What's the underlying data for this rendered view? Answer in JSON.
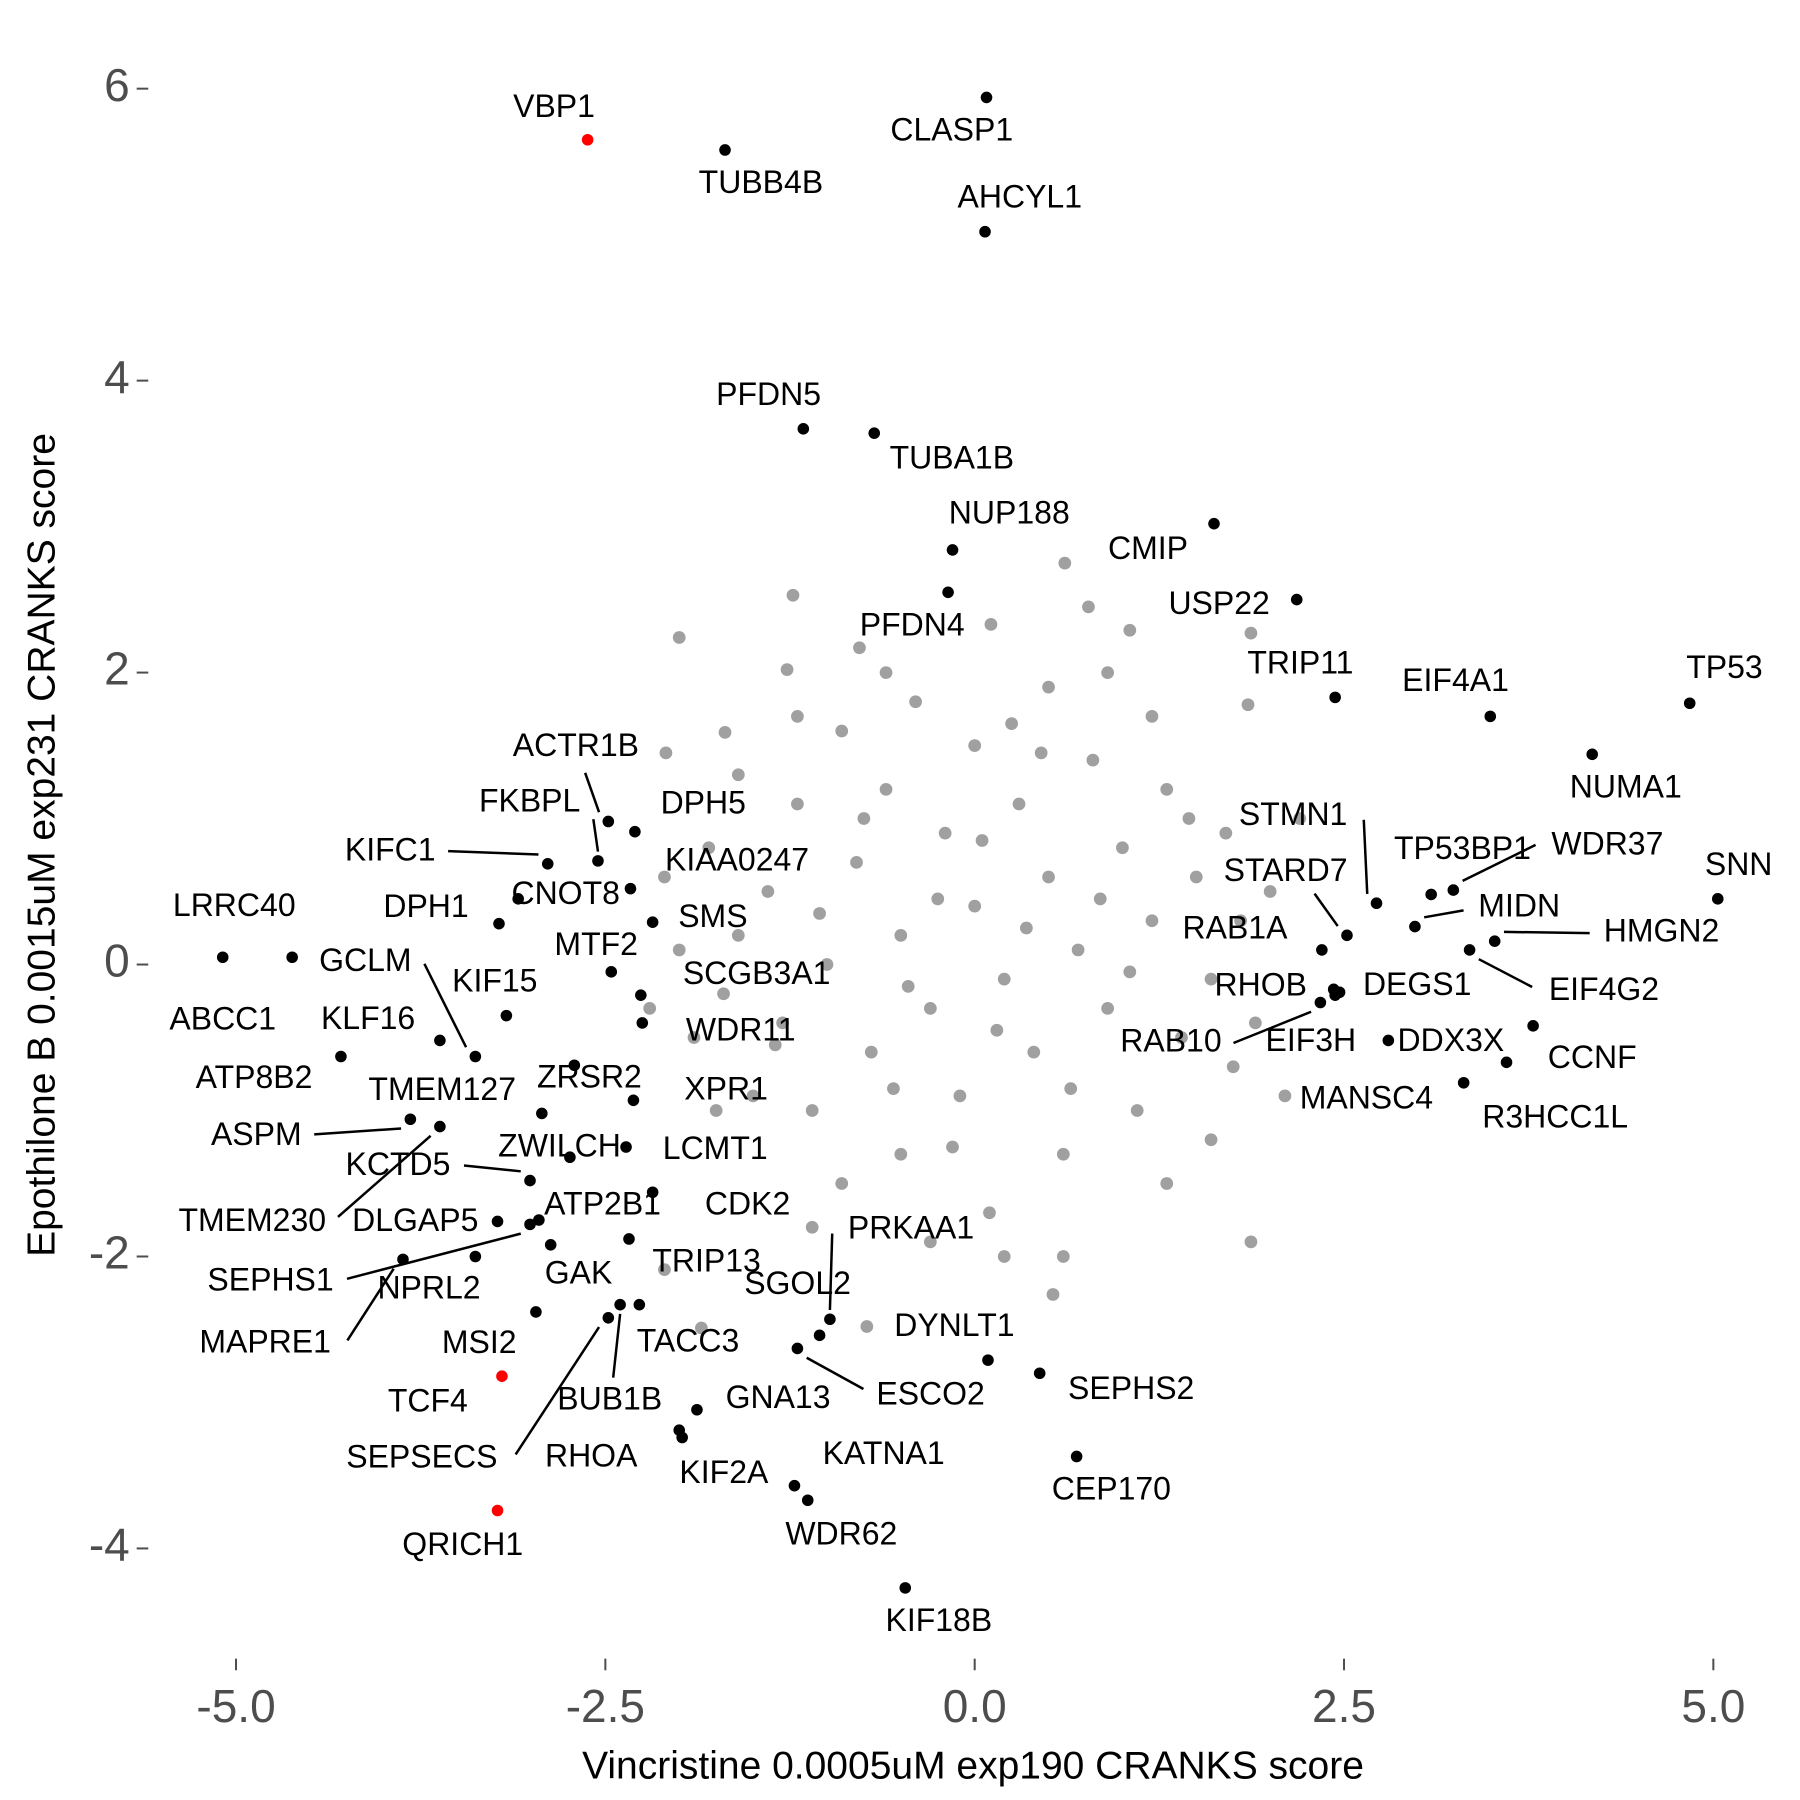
{
  "chart_data": {
    "type": "scatter",
    "xlabel": "Vincristine 0.0005uM exp190 CRANKS score",
    "ylabel": "Epothilone B 0.0015uM exp231 CRANKS score",
    "xlim": [
      -5.5,
      5.32
    ],
    "ylim": [
      -4.66,
      6.29
    ],
    "xticks": [
      {
        "value": -5,
        "label": "-5.0"
      },
      {
        "value": -2.5,
        "label": "-2.5"
      },
      {
        "value": 0,
        "label": "0.0"
      },
      {
        "value": 2.5,
        "label": "2.5"
      },
      {
        "value": 5,
        "label": "5.0"
      }
    ],
    "yticks": [
      -4,
      -2,
      0,
      2,
      4,
      6
    ],
    "series": [
      {
        "color": "#a0a0a0",
        "x": [
          -2.0,
          -1.23,
          0.61,
          0.77,
          0.11,
          1.05,
          1.87,
          1.85,
          1.87,
          0.53,
          -0.73,
          -1.85,
          -2.1,
          -2.09,
          -1.69,
          -1.27,
          -0.78,
          -1.4,
          -1.3,
          -1.2,
          -1.1,
          -1.0,
          -0.9,
          -0.9,
          -0.8,
          -0.7,
          -0.6,
          -0.5,
          -0.5,
          -0.4,
          -0.3,
          -0.2,
          -0.1,
          0.0,
          0.0,
          0.1,
          0.2,
          0.3,
          0.4,
          0.5,
          0.5,
          0.6,
          0.7,
          0.8,
          0.9,
          1.0,
          1.1,
          1.2,
          1.3,
          1.4,
          1.5,
          1.6,
          1.7,
          -1.5,
          -1.6,
          -1.7,
          1.8,
          1.9,
          2.0,
          -1.8,
          -1.9,
          -2.0,
          0.2,
          -0.3,
          0.6,
          -0.6,
          0.9,
          1.2,
          -1.2,
          1.3,
          -1.1,
          0.35,
          -0.25,
          0.15,
          -0.45,
          0.65,
          -0.75,
          1.05,
          -1.05,
          0.45,
          -0.15,
          0.85,
          -0.55,
          1.45,
          -1.35,
          0.05,
          0.25,
          1.6,
          -1.6,
          1.75,
          -1.75,
          2.1,
          -2.2,
          2.2,
          -2.1
        ],
        "y": [
          2.24,
          2.53,
          2.75,
          2.45,
          2.33,
          2.29,
          2.27,
          1.78,
          -1.9,
          -2.26,
          -2.48,
          -2.49,
          -2.09,
          1.45,
          1.59,
          2.02,
          2.17,
          0.5,
          -0.4,
          1.1,
          -1.0,
          0.0,
          1.6,
          -1.5,
          0.7,
          -0.6,
          1.2,
          0.2,
          -1.3,
          1.8,
          -0.3,
          0.9,
          -0.9,
          0.4,
          1.5,
          -1.7,
          -0.1,
          1.1,
          -0.6,
          0.6,
          1.9,
          -1.3,
          0.1,
          1.4,
          -0.3,
          0.8,
          -1.0,
          0.3,
          1.2,
          -0.5,
          0.6,
          -0.1,
          0.9,
          -0.9,
          0.2,
          -0.2,
          0.3,
          -0.4,
          0.5,
          0.8,
          -0.5,
          0.1,
          -2.0,
          -1.9,
          -2.0,
          2.0,
          2.0,
          1.7,
          1.7,
          -1.5,
          -1.8,
          0.25,
          0.45,
          -0.45,
          -0.15,
          -0.85,
          1.0,
          -0.05,
          0.35,
          1.45,
          -1.25,
          0.45,
          -0.85,
          1.0,
          -0.55,
          0.85,
          1.65,
          -1.2,
          1.3,
          -0.7,
          -1.0,
          -0.9,
          -0.3,
          1.0,
          0.6
        ]
      },
      {
        "color": "#000000",
        "labels": [
          "CLASP1",
          "TUBB4B",
          "AHCYL1",
          "PFDN5",
          "TUBA1B",
          "NUP188",
          "CMIP",
          "USP22",
          "PFDN4",
          "TRIP11",
          "EIF4A1",
          "TP53",
          "NUMA1",
          "SNN",
          "WDR37",
          "TP53BP1",
          "MIDN",
          "HMGN2",
          "EIF4G2",
          "STMN1",
          "STARD7",
          "RAB1A",
          "RHOB",
          "DEGS1",
          "RAB10",
          "EIF3H",
          "DDX3X",
          "CCNF",
          "R3HCC1L",
          "MANSC4",
          "LRRC40",
          "ABCC1",
          "ATP8B2",
          "KLF16",
          "GCLM",
          "KIF15",
          "DPH1",
          "KIFC1",
          "CNOT8",
          "FKBPL",
          "ACTR1B",
          "DPH5",
          "KIAA0247",
          "SMS",
          "MTF2",
          "SCGB3A1",
          "WDR11",
          "ZRSR2",
          "XPR1",
          "TMEM127",
          "ASPM",
          "KCTD5",
          "ZWILCH",
          "LCMT1",
          "TMEM230",
          "DLGAP5",
          "ATP2B1",
          "SEPHS1",
          "NPRL2",
          "MAPRE1",
          "GAK",
          "CDK2",
          "TRIP13",
          "MSI2",
          "TACC3",
          "BUB1B",
          "SEPSECS",
          "RHOA",
          "GNA13",
          "KIF2A",
          "KATNA1",
          "WDR62",
          "KIF18B",
          "CEP170",
          "SEPHS2",
          "DYNLT1",
          "ESCO2",
          "PRKAA1",
          "SGOL2"
        ],
        "x": [
          0.08,
          -1.69,
          0.07,
          -1.16,
          -0.68,
          -0.15,
          1.62,
          2.18,
          -0.18,
          2.44,
          3.49,
          4.84,
          4.18,
          5.03,
          3.24,
          3.09,
          2.98,
          3.52,
          3.35,
          2.72,
          2.52,
          2.35,
          2.43,
          2.47,
          2.34,
          2.44,
          2.8,
          3.78,
          3.6,
          3.31,
          -4.62,
          -5.09,
          -4.29,
          -3.62,
          -3.38,
          -3.17,
          -3.22,
          -2.89,
          -3.09,
          -2.55,
          -2.48,
          -2.3,
          -2.33,
          -2.18,
          -2.46,
          -2.26,
          -2.25,
          -2.71,
          -2.31,
          -2.93,
          -3.82,
          -3.01,
          -2.74,
          -2.36,
          -3.62,
          -3.23,
          -2.95,
          -3.01,
          -3.38,
          -3.87,
          -2.87,
          -2.18,
          -2.34,
          -2.97,
          -2.27,
          -2.4,
          -2.48,
          -2.0,
          -1.88,
          -1.98,
          -1.22,
          -1.13,
          -0.47,
          0.69,
          0.44,
          0.09,
          -1.2,
          -0.98,
          -1.05
        ],
        "y": [
          5.94,
          5.58,
          5.02,
          3.67,
          3.64,
          2.84,
          3.02,
          2.5,
          2.55,
          1.83,
          1.7,
          1.79,
          1.44,
          0.45,
          0.51,
          0.48,
          0.26,
          0.16,
          0.1,
          0.42,
          0.2,
          0.1,
          -0.17,
          -0.19,
          -0.26,
          -0.21,
          -0.52,
          -0.42,
          -0.67,
          -0.81,
          0.05,
          0.05,
          -0.63,
          -0.52,
          -0.63,
          -0.35,
          0.28,
          0.69,
          0.45,
          0.71,
          0.98,
          0.91,
          0.52,
          0.29,
          -0.05,
          -0.21,
          -0.4,
          -0.69,
          -0.93,
          -1.02,
          -1.06,
          -1.48,
          -1.32,
          -1.25,
          -1.11,
          -1.76,
          -1.75,
          -1.78,
          -2.0,
          -2.02,
          -1.92,
          -1.56,
          -1.88,
          -2.38,
          -2.33,
          -2.33,
          -2.42,
          -3.19,
          -3.05,
          -3.24,
          -3.57,
          -3.67,
          -4.27,
          -3.37,
          -2.8,
          -2.71,
          -2.63,
          -2.43,
          -2.54
        ]
      },
      {
        "color": "#ff0000",
        "labels": [
          "VBP1",
          "TCF4",
          "QRICH1"
        ],
        "x": [
          -2.62,
          -3.2,
          -3.23
        ],
        "y": [
          5.65,
          -2.82,
          -3.74
        ]
      }
    ]
  }
}
